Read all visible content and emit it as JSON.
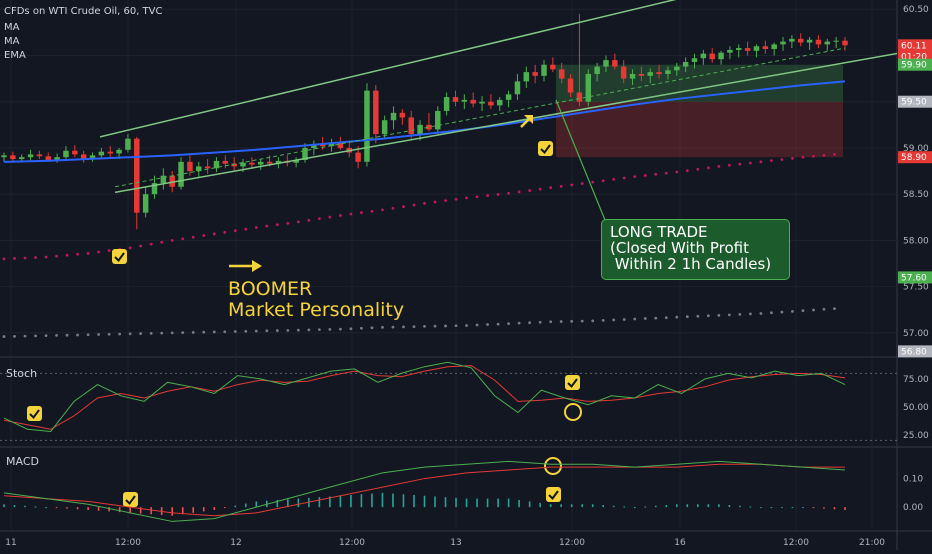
{
  "header": {
    "symbol_line": "CFDs on WTI Crude Oil, 60, TVC",
    "indicators": [
      "MA",
      "MA",
      "EMA"
    ]
  },
  "annotations": {
    "boomer_line1": "BOOMER",
    "boomer_line2": "Market Personality",
    "trade_line1": "LONG TRADE",
    "trade_line2": "(Closed With Profit",
    "trade_line3": " Within 2 1h Candles)"
  },
  "panes": {
    "stoch_label": "Stoch",
    "macd_label": "MACD"
  },
  "colors": {
    "background": "#131722",
    "up": "#4caf50",
    "down": "#e53935",
    "channel": "#81c784",
    "ma_blue": "#2962ff",
    "dots_red": "#c2185b",
    "dots_grey": "#787b86",
    "highlight": "#f5d33a"
  },
  "chart_data": [
    {
      "type": "candlestick",
      "title": "CFDs on WTI Crude Oil, 60, TVC",
      "ylim": [
        56.75,
        60.6
      ],
      "y_ticks": [
        57.0,
        57.5,
        58.0,
        58.5,
        59.0,
        59.5,
        60.0,
        60.5
      ],
      "x_ticks": [
        "11",
        "12:00",
        "12",
        "12:00",
        "13",
        "12:00",
        "16",
        "12:00",
        "21:00"
      ],
      "price_labels": [
        {
          "text": "60.11",
          "value": 60.11,
          "color": "#e53935"
        },
        {
          "text": "01:20",
          "value": 59.99,
          "color": "#e53935"
        },
        {
          "text": "59.90",
          "value": 59.9,
          "color": "#4caf50"
        },
        {
          "text": "59.50",
          "value": 59.5,
          "color": "#b2b5be"
        },
        {
          "text": "58.90",
          "value": 58.9,
          "color": "#e53935"
        },
        {
          "text": "57.60",
          "value": 57.6,
          "color": "#4caf50"
        },
        {
          "text": "56.80",
          "value": 56.8,
          "color": "#b2b5be"
        }
      ],
      "long_position": {
        "entry": 59.5,
        "target": 59.9,
        "stop": 58.9
      },
      "channel": {
        "start": [
          58.52,
          59.12
        ],
        "end": [
          60.0,
          61.2
        ]
      },
      "series": [
        {
          "name": "MA",
          "type": "line",
          "values": [
            58.85,
            58.86,
            58.88,
            58.9,
            58.92,
            58.95,
            58.98,
            59.02,
            59.06,
            59.1,
            59.15,
            59.2,
            59.26,
            59.33,
            59.4,
            59.47,
            59.53,
            59.58,
            59.63,
            59.68,
            59.72
          ]
        },
        {
          "name": "MA",
          "type": "dots",
          "values": [
            57.8,
            57.82,
            57.86,
            57.92,
            58.0,
            58.07,
            58.14,
            58.2,
            58.27,
            58.33,
            58.4,
            58.46,
            58.51,
            58.57,
            58.63,
            58.69,
            58.74,
            58.8,
            58.85,
            58.9,
            58.94
          ]
        },
        {
          "name": "EMA",
          "type": "dots",
          "values": [
            56.96,
            56.97,
            56.98,
            56.99,
            57.0,
            57.01,
            57.02,
            57.03,
            57.04,
            57.06,
            57.07,
            57.08,
            57.1,
            57.12,
            57.13,
            57.15,
            57.17,
            57.19,
            57.21,
            57.24,
            57.27
          ]
        }
      ],
      "candles": [
        [
          58.9,
          58.95,
          58.85,
          58.92
        ],
        [
          58.92,
          58.96,
          58.84,
          58.88
        ],
        [
          58.88,
          58.93,
          58.85,
          58.9
        ],
        [
          58.9,
          58.98,
          58.86,
          58.93
        ],
        [
          58.93,
          58.97,
          58.88,
          58.91
        ],
        [
          58.91,
          58.95,
          58.85,
          58.87
        ],
        [
          58.87,
          58.94,
          58.84,
          58.9
        ],
        [
          58.9,
          59.02,
          58.87,
          58.97
        ],
        [
          58.97,
          59.03,
          58.9,
          58.93
        ],
        [
          58.93,
          58.97,
          58.84,
          58.88
        ],
        [
          58.88,
          58.95,
          58.85,
          58.92
        ],
        [
          58.92,
          59.0,
          58.89,
          58.96
        ],
        [
          58.96,
          59.02,
          58.9,
          58.94
        ],
        [
          58.94,
          59.0,
          58.88,
          58.98
        ],
        [
          58.98,
          59.15,
          58.95,
          59.1
        ],
        [
          59.1,
          59.12,
          58.12,
          58.3
        ],
        [
          58.3,
          58.58,
          58.25,
          58.5
        ],
        [
          58.5,
          58.7,
          58.45,
          58.62
        ],
        [
          58.62,
          58.78,
          58.55,
          58.7
        ],
        [
          58.7,
          58.75,
          58.52,
          58.58
        ],
        [
          58.58,
          58.9,
          58.55,
          58.85
        ],
        [
          58.85,
          58.92,
          58.7,
          58.75
        ],
        [
          58.75,
          58.85,
          58.68,
          58.8
        ],
        [
          58.8,
          58.88,
          58.72,
          58.78
        ],
        [
          58.78,
          58.9,
          58.74,
          58.86
        ],
        [
          58.86,
          58.92,
          58.78,
          58.83
        ],
        [
          58.83,
          58.9,
          58.76,
          58.8
        ],
        [
          58.8,
          58.88,
          58.74,
          58.84
        ],
        [
          58.84,
          58.9,
          58.78,
          58.82
        ],
        [
          58.82,
          58.88,
          58.76,
          58.85
        ],
        [
          58.85,
          58.92,
          58.8,
          58.83
        ],
        [
          58.83,
          58.9,
          58.78,
          58.86
        ],
        [
          58.86,
          58.92,
          58.8,
          58.84
        ],
        [
          58.84,
          58.9,
          58.79,
          58.87
        ],
        [
          58.87,
          59.05,
          58.84,
          59.0
        ],
        [
          59.0,
          59.08,
          58.92,
          59.04
        ],
        [
          59.04,
          59.12,
          58.98,
          59.02
        ],
        [
          59.02,
          59.1,
          58.96,
          59.06
        ],
        [
          59.06,
          59.12,
          58.98,
          59.0
        ],
        [
          59.0,
          59.08,
          58.9,
          58.95
        ],
        [
          58.95,
          59.02,
          58.78,
          58.85
        ],
        [
          58.85,
          59.7,
          58.8,
          59.62
        ],
        [
          59.62,
          59.68,
          59.05,
          59.15
        ],
        [
          59.15,
          59.35,
          59.1,
          59.3
        ],
        [
          59.3,
          59.45,
          59.2,
          59.38
        ],
        [
          59.38,
          59.42,
          59.25,
          59.33
        ],
        [
          59.33,
          59.4,
          59.1,
          59.15
        ],
        [
          59.15,
          59.3,
          59.08,
          59.25
        ],
        [
          59.25,
          59.38,
          59.18,
          59.2
        ],
        [
          59.2,
          59.45,
          59.15,
          59.4
        ],
        [
          59.4,
          59.6,
          59.35,
          59.55
        ],
        [
          59.55,
          59.62,
          59.45,
          59.5
        ],
        [
          59.5,
          59.58,
          59.42,
          59.52
        ],
        [
          59.52,
          59.6,
          59.44,
          59.48
        ],
        [
          59.48,
          59.56,
          59.4,
          59.5
        ],
        [
          59.5,
          59.58,
          59.42,
          59.46
        ],
        [
          59.46,
          59.55,
          59.4,
          59.52
        ],
        [
          59.52,
          59.62,
          59.44,
          59.58
        ],
        [
          59.58,
          59.8,
          59.52,
          59.72
        ],
        [
          59.72,
          59.88,
          59.65,
          59.82
        ],
        [
          59.82,
          59.9,
          59.7,
          59.78
        ],
        [
          59.78,
          59.95,
          59.72,
          59.9
        ],
        [
          59.9,
          59.98,
          59.82,
          59.85
        ],
        [
          59.85,
          59.92,
          59.7,
          59.75
        ],
        [
          59.75,
          59.8,
          59.55,
          59.6
        ],
        [
          59.6,
          60.45,
          59.45,
          59.5
        ],
        [
          59.5,
          59.85,
          59.45,
          59.8
        ],
        [
          59.8,
          59.92,
          59.72,
          59.88
        ],
        [
          59.88,
          60.0,
          59.82,
          59.95
        ],
        [
          59.95,
          60.02,
          59.85,
          59.88
        ],
        [
          59.88,
          59.95,
          59.7,
          59.75
        ],
        [
          59.75,
          59.85,
          59.68,
          59.8
        ],
        [
          59.8,
          59.88,
          59.72,
          59.78
        ],
        [
          59.78,
          59.86,
          59.7,
          59.82
        ],
        [
          59.82,
          59.9,
          59.75,
          59.8
        ],
        [
          59.8,
          59.88,
          59.74,
          59.84
        ],
        [
          59.84,
          59.92,
          59.78,
          59.88
        ],
        [
          59.88,
          59.98,
          59.82,
          59.93
        ],
        [
          59.93,
          60.02,
          59.86,
          59.97
        ],
        [
          59.97,
          60.06,
          59.9,
          60.02
        ],
        [
          60.02,
          60.08,
          59.92,
          59.96
        ],
        [
          59.96,
          60.05,
          59.9,
          60.03
        ],
        [
          60.03,
          60.1,
          59.96,
          60.06
        ],
        [
          60.06,
          60.12,
          59.98,
          60.08
        ],
        [
          60.08,
          60.15,
          60.0,
          60.05
        ],
        [
          60.05,
          60.12,
          59.98,
          60.1
        ],
        [
          60.1,
          60.16,
          60.02,
          60.07
        ],
        [
          60.07,
          60.14,
          60.0,
          60.12
        ],
        [
          60.12,
          60.2,
          60.05,
          60.15
        ],
        [
          60.15,
          60.22,
          60.08,
          60.18
        ],
        [
          60.18,
          60.24,
          60.1,
          60.14
        ],
        [
          60.14,
          60.2,
          60.06,
          60.17
        ],
        [
          60.17,
          60.22,
          60.08,
          60.12
        ],
        [
          60.12,
          60.18,
          60.05,
          60.15
        ],
        [
          60.15,
          60.2,
          60.08,
          60.16
        ],
        [
          60.16,
          60.2,
          60.05,
          60.11
        ]
      ]
    },
    {
      "type": "line",
      "title": "Stoch",
      "ylim": [
        15,
        92
      ],
      "y_ticks": [
        25.0,
        50.0,
        75.0
      ],
      "guides": [
        80,
        20
      ],
      "series": [
        {
          "name": "%K",
          "values": [
            40,
            30,
            28,
            55,
            70,
            60,
            55,
            72,
            68,
            62,
            78,
            75,
            70,
            76,
            82,
            84,
            72,
            80,
            86,
            90,
            85,
            60,
            45,
            65,
            58,
            52,
            60,
            58,
            70,
            62,
            75,
            80,
            76,
            82,
            78,
            80,
            70
          ]
        },
        {
          "name": "%D",
          "values": [
            38,
            34,
            30,
            42,
            58,
            62,
            58,
            64,
            68,
            64,
            70,
            74,
            72,
            73,
            78,
            82,
            78,
            77,
            82,
            86,
            87,
            74,
            55,
            56,
            58,
            55,
            56,
            58,
            62,
            64,
            68,
            74,
            77,
            79,
            80,
            79,
            76
          ]
        }
      ]
    },
    {
      "type": "bar",
      "title": "MACD",
      "ylim": [
        -0.08,
        0.2
      ],
      "y_ticks": [
        0.0,
        0.1
      ],
      "series": [
        {
          "name": "MACD",
          "type": "line",
          "values": [
            0.05,
            0.03,
            0.01,
            -0.02,
            -0.05,
            -0.04,
            0.0,
            0.04,
            0.08,
            0.12,
            0.14,
            0.15,
            0.16,
            0.15,
            0.15,
            0.14,
            0.15,
            0.16,
            0.15,
            0.14,
            0.13
          ]
        },
        {
          "name": "Signal",
          "type": "line",
          "values": [
            0.04,
            0.03,
            0.02,
            0.0,
            -0.02,
            -0.03,
            -0.02,
            0.01,
            0.04,
            0.07,
            0.1,
            0.12,
            0.13,
            0.14,
            0.14,
            0.14,
            0.14,
            0.15,
            0.15,
            0.14,
            0.14
          ]
        },
        {
          "name": "Histogram",
          "type": "bar",
          "values": [
            0.01,
            0.0,
            -0.01,
            -0.02,
            -0.03,
            -0.01,
            0.02,
            0.03,
            0.04,
            0.05,
            0.04,
            0.03,
            0.03,
            0.01,
            0.01,
            0.0,
            0.01,
            0.01,
            0.0,
            0.0,
            -0.01
          ]
        }
      ]
    }
  ]
}
